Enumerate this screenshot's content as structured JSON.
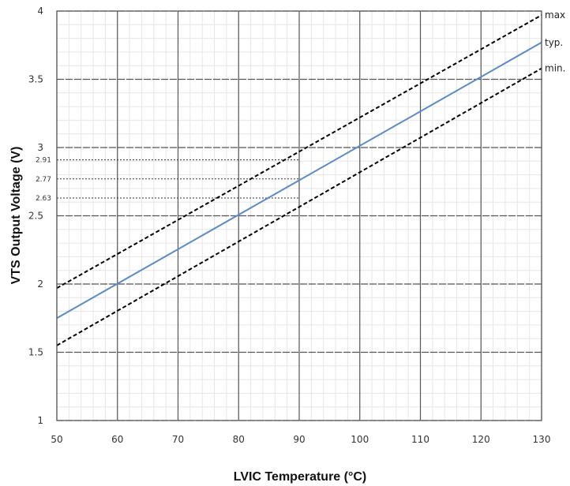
{
  "chart_data": {
    "type": "line",
    "xlabel": "LVIC Temperature (°C)",
    "ylabel": "VTS Output Voltage (V)",
    "xlim": [
      50,
      130
    ],
    "ylim": [
      1,
      4
    ],
    "x_ticks": [
      "50",
      "60",
      "70",
      "80",
      "90",
      "100",
      "110",
      "120",
      "130"
    ],
    "y_ticks": [
      "1",
      "1.5",
      "2",
      "2.5",
      "3",
      "3.5",
      "4"
    ],
    "y_extra_ticks": [
      "2.63",
      "2.77",
      "2.91"
    ],
    "grid": true,
    "series": [
      {
        "name": "max",
        "style": "dashed",
        "color": "#000000",
        "points": [
          [
            50,
            1.97
          ],
          [
            130,
            3.97
          ]
        ]
      },
      {
        "name": "typ.",
        "style": "solid",
        "color": "#5b8bc4",
        "points": [
          [
            50,
            1.75
          ],
          [
            130,
            3.77
          ]
        ]
      },
      {
        "name": "min.",
        "style": "dashed",
        "color": "#000000",
        "points": [
          [
            50,
            1.55
          ],
          [
            130,
            3.58
          ]
        ]
      }
    ],
    "reference_lines": [
      {
        "y": 2.91,
        "to_x": 90
      },
      {
        "y": 2.77,
        "to_x": 90
      },
      {
        "y": 2.63,
        "to_x": 90
      }
    ]
  }
}
